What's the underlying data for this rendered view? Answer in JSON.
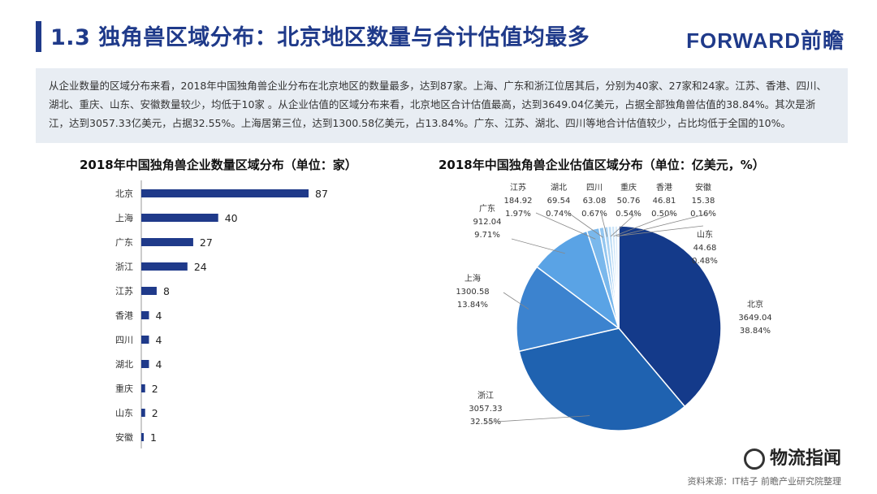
{
  "header": {
    "title": "1.3 独角兽区域分布：北京地区数量与合计估值均最多",
    "logo": "FORWARD前瞻"
  },
  "summary": "从企业数量的区域分布来看，2018年中国独角兽企业分布在北京地区的数量最多，达到87家。上海、广东和浙江位居其后，分别为40家、27家和24家。江苏、香港、四川、湖北、重庆、山东、安徽数量较少，均低于10家 。从企业估值的区域分布来看，北京地区合计估值最高，达到3649.04亿美元，占据全部独角兽估值的38.84%。其次是浙江，达到3057.33亿美元，占据32.55%。上海居第三位，达到1300.58亿美元，占13.84%。广东、江苏、湖北、四川等地合计估值较少，占比均低于全国的10%。",
  "footer": {
    "source": "资料来源：IT桔子 前瞻产业研究院整理",
    "watermark": "物流指闻"
  },
  "colors": {
    "brand": "#1f3a8a",
    "bar": "#1f3a8a",
    "summary_bg": "#e8edf3",
    "pie": [
      "#143a8a",
      "#1f62b0",
      "#3c83cf",
      "#5aa3e5",
      "#7ab8ec",
      "#93c6f0",
      "#a9d2f3",
      "#bcdcf5",
      "#cde5f8",
      "#dbecfa",
      "#e8f3fc"
    ]
  },
  "chart_data": [
    {
      "type": "bar",
      "orientation": "horizontal",
      "title": "2018年中国独角兽企业数量区域分布（单位：家）",
      "categories": [
        "北京",
        "上海",
        "广东",
        "浙江",
        "江苏",
        "香港",
        "四川",
        "湖北",
        "重庆",
        "山东",
        "安徽"
      ],
      "values": [
        87,
        40,
        27,
        24,
        8,
        4,
        4,
        4,
        2,
        2,
        1
      ],
      "xlim": [
        0,
        87
      ]
    },
    {
      "type": "pie",
      "title": "2018年中国独角兽企业估值区域分布（单位：亿美元，%）",
      "start_angle_deg": 0,
      "slices": [
        {
          "label": "北京",
          "value": 3649.04,
          "percent": "38.84%"
        },
        {
          "label": "浙江",
          "value": 3057.33,
          "percent": "32.55%"
        },
        {
          "label": "上海",
          "value": 1300.58,
          "percent": "13.84%"
        },
        {
          "label": "广东",
          "value": 912.04,
          "percent": "9.71%"
        },
        {
          "label": "江苏",
          "value": 184.92,
          "percent": "1.97%"
        },
        {
          "label": "湖北",
          "value": 69.54,
          "percent": "0.74%"
        },
        {
          "label": "四川",
          "value": 63.08,
          "percent": "0.67%"
        },
        {
          "label": "重庆",
          "value": 50.76,
          "percent": "0.54%"
        },
        {
          "label": "香港",
          "value": 46.81,
          "percent": "0.50%"
        },
        {
          "label": "山东",
          "value": 44.68,
          "percent": "0.48%"
        },
        {
          "label": "安徽",
          "value": 15.38,
          "percent": "0.16%"
        }
      ]
    }
  ]
}
